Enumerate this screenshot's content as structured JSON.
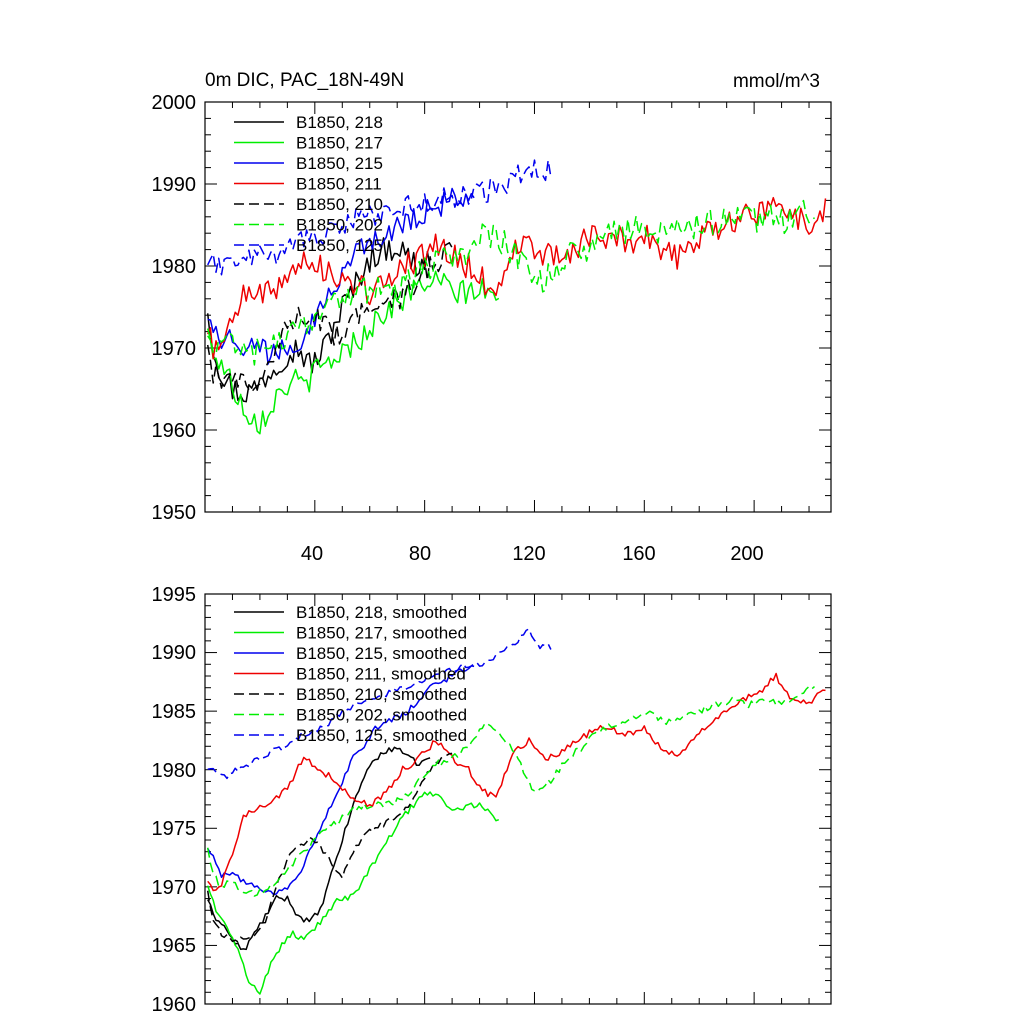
{
  "chart_data": [
    {
      "type": "line",
      "title": "0m DIC, PAC_18N-49N",
      "units": "mmol/m^3",
      "xlim": [
        0,
        228
      ],
      "ylim": [
        1950,
        2000
      ],
      "x_ticks": [
        40,
        80,
        120,
        160,
        200
      ],
      "x_tick_labels": [
        "40",
        "80",
        "120",
        "160",
        "200"
      ],
      "y_ticks": [
        1950,
        1960,
        1970,
        1980,
        1990,
        2000
      ],
      "y_tick_labels": [
        "1950",
        "1960",
        "1970",
        "1980",
        "1990",
        "2000"
      ],
      "legend_position": "top-left",
      "series": [
        {
          "name": "B1850, 218",
          "color": "#000000",
          "dash": "solid",
          "noise": 1.7,
          "x": [
            1,
            3,
            6,
            10,
            14,
            18,
            22,
            26,
            30,
            34,
            38,
            42,
            46,
            50,
            54,
            58,
            62,
            66,
            70,
            74,
            78,
            82
          ],
          "y": [
            1975,
            1970,
            1967,
            1965,
            1964.5,
            1965,
            1966.5,
            1968,
            1969.5,
            1970,
            1968,
            1969,
            1972,
            1975,
            1977,
            1980,
            1981.5,
            1982,
            1982.5,
            1981,
            1980,
            1981
          ]
        },
        {
          "name": "B1850, 217",
          "color": "#00ee00",
          "dash": "solid",
          "noise": 1.6,
          "x": [
            1,
            4,
            8,
            12,
            16,
            20,
            24,
            28,
            32,
            36,
            40,
            44,
            48,
            52,
            56,
            60,
            64,
            68,
            72,
            76,
            80,
            84,
            88,
            92,
            96,
            100,
            104,
            107
          ],
          "y": [
            1971,
            1969,
            1967,
            1964,
            1962,
            1961,
            1963,
            1965,
            1966,
            1965.5,
            1967,
            1968,
            1969,
            1970,
            1971,
            1972.5,
            1974,
            1975,
            1976,
            1977,
            1978,
            1978,
            1977.5,
            1976.5,
            1977,
            1977,
            1976.5,
            1975.5
          ]
        },
        {
          "name": "B1850, 215",
          "color": "#0000ee",
          "dash": "solid",
          "noise": 1.6,
          "x": [
            1,
            3,
            6,
            10,
            14,
            18,
            22,
            26,
            30,
            34,
            38,
            42,
            46,
            50,
            54,
            58,
            62,
            66,
            70,
            74,
            78,
            82,
            86,
            90,
            94,
            98
          ],
          "y": [
            1975,
            1973,
            1971,
            1971,
            1970.5,
            1970,
            1969.5,
            1969.5,
            1970,
            1971,
            1973,
            1975,
            1977,
            1979,
            1981,
            1982,
            1983.5,
            1984,
            1984.5,
            1985,
            1986,
            1987,
            1987.5,
            1988,
            1988.5,
            1989
          ]
        },
        {
          "name": "B1850, 211",
          "color": "#ee0000",
          "dash": "solid",
          "noise": 1.7,
          "x": [
            1,
            3,
            6,
            10,
            14,
            18,
            24,
            30,
            36,
            42,
            48,
            54,
            60,
            66,
            72,
            78,
            84,
            90,
            96,
            100,
            106,
            112,
            118,
            124,
            130,
            136,
            142,
            148,
            154,
            160,
            166,
            172,
            178,
            184,
            190,
            196,
            202,
            208,
            214,
            220,
            226
          ],
          "y": [
            1972,
            1970,
            1970,
            1973,
            1976,
            1976.5,
            1977,
            1978.5,
            1981,
            1980,
            1979,
            1977.5,
            1977,
            1978,
            1980,
            1981,
            1982.5,
            1981,
            1980,
            1978.5,
            1977.5,
            1981.5,
            1982.5,
            1981,
            1981.5,
            1982.5,
            1983.5,
            1983.5,
            1983,
            1983.5,
            1982,
            1981,
            1982.5,
            1984,
            1985,
            1986,
            1986.5,
            1988,
            1986,
            1985.5,
            1987
          ]
        },
        {
          "name": "B1850, 210",
          "color": "#000000",
          "dash": "dash",
          "noise": 1.5,
          "x": [
            1,
            3,
            6,
            10,
            14,
            18,
            22,
            26,
            30,
            34,
            38,
            42,
            46,
            50,
            54,
            58,
            62,
            66,
            70,
            74,
            78,
            82,
            86,
            90
          ],
          "y": [
            1969.5,
            1967,
            1966,
            1965.5,
            1965.5,
            1966,
            1967,
            1970,
            1972.5,
            1973.5,
            1974,
            1973.5,
            1972,
            1971,
            1973,
            1974.5,
            1975,
            1975.5,
            1976,
            1977,
            1978.5,
            1980,
            1981,
            1981.5
          ]
        },
        {
          "name": "B1850, 202",
          "color": "#00ee00",
          "dash": "dash",
          "noise": 1.7,
          "x": [
            1,
            3,
            6,
            10,
            14,
            18,
            24,
            30,
            36,
            42,
            48,
            54,
            60,
            66,
            72,
            78,
            84,
            90,
            96,
            102,
            108,
            114,
            120,
            126,
            132,
            138,
            144,
            150,
            156,
            162,
            168,
            174,
            180,
            186,
            192,
            198,
            204,
            210,
            216,
            222
          ],
          "y": [
            1973.5,
            1971,
            1970,
            1970.5,
            1969.5,
            1969.5,
            1970,
            1971.5,
            1973,
            1974.5,
            1975.5,
            1976.5,
            1977,
            1977,
            1977.5,
            1979,
            1980.5,
            1981,
            1982,
            1984,
            1983,
            1981,
            1978,
            1979,
            1981,
            1982,
            1983.5,
            1984,
            1984.5,
            1985,
            1984,
            1984.5,
            1985,
            1985.5,
            1986,
            1985.5,
            1986,
            1985.5,
            1986.5,
            1987
          ]
        },
        {
          "name": "B1850, 125",
          "color": "#0000ee",
          "dash": "dash",
          "noise": 1.5,
          "x": [
            1,
            4,
            8,
            12,
            16,
            20,
            24,
            30,
            36,
            42,
            48,
            54,
            60,
            66,
            72,
            78,
            84,
            90,
            96,
            102,
            108,
            114,
            118,
            122,
            126
          ],
          "y": [
            1980,
            1980,
            1979.5,
            1980,
            1980.5,
            1981,
            1981.5,
            1982,
            1983,
            1983.5,
            1984.5,
            1985.5,
            1986,
            1986.5,
            1987,
            1987.5,
            1988,
            1988.5,
            1989,
            1989,
            1990,
            1991,
            1992,
            1991,
            1992
          ]
        }
      ]
    },
    {
      "type": "line",
      "xlim": [
        0,
        228
      ],
      "ylim": [
        1960,
        1995
      ],
      "x_ticks": [
        40,
        80,
        120,
        160,
        200
      ],
      "y_ticks": [
        1960,
        1965,
        1970,
        1975,
        1980,
        1985,
        1990,
        1995
      ],
      "y_tick_labels": [
        "1960",
        "1965",
        "1970",
        "1975",
        "1980",
        "1985",
        "1990",
        "1995"
      ],
      "legend_position": "top-left",
      "series": [
        {
          "name": "B1850, 218, smoothed",
          "color": "#000000",
          "dash": "solid",
          "noise": 0.25,
          "x": [
            1,
            3,
            6,
            10,
            14,
            18,
            22,
            26,
            30,
            34,
            38,
            42,
            46,
            50,
            54,
            58,
            62,
            66,
            70,
            74,
            78,
            82
          ],
          "y": [
            1969,
            1967.5,
            1967,
            1965.5,
            1964.5,
            1966,
            1967.5,
            1969,
            1969,
            1967.5,
            1967,
            1968,
            1971,
            1974,
            1977,
            1979.5,
            1981,
            1981.5,
            1982,
            1981,
            1980.5,
            1981
          ]
        },
        {
          "name": "B1850, 217, smoothed",
          "color": "#00ee00",
          "dash": "solid",
          "noise": 0.25,
          "x": [
            1,
            4,
            8,
            12,
            16,
            20,
            24,
            28,
            32,
            36,
            40,
            44,
            48,
            52,
            56,
            60,
            64,
            68,
            72,
            76,
            80,
            84,
            88,
            92,
            96,
            100,
            104,
            107
          ],
          "y": [
            1970,
            1968,
            1966.5,
            1964.5,
            1962,
            1961,
            1963.5,
            1965,
            1966,
            1965.5,
            1966.5,
            1967.5,
            1969,
            1969,
            1970,
            1971.5,
            1973,
            1974.5,
            1976,
            1977,
            1978,
            1978,
            1977,
            1976.5,
            1977,
            1977,
            1976.5,
            1975.5
          ]
        },
        {
          "name": "B1850, 215, smoothed",
          "color": "#0000ee",
          "dash": "solid",
          "noise": 0.25,
          "x": [
            1,
            3,
            6,
            10,
            14,
            18,
            22,
            26,
            30,
            34,
            38,
            42,
            46,
            50,
            54,
            58,
            62,
            66,
            70,
            74,
            78,
            82,
            86,
            90,
            94,
            98
          ],
          "y": [
            1973.5,
            1972.5,
            1971,
            1971,
            1970.5,
            1970,
            1969.5,
            1969.5,
            1970,
            1971,
            1973,
            1975,
            1977,
            1979,
            1981,
            1982,
            1983.5,
            1984,
            1984.5,
            1985,
            1986,
            1987,
            1987.5,
            1988,
            1988.5,
            1989
          ]
        },
        {
          "name": "B1850, 211, smoothed",
          "color": "#ee0000",
          "dash": "solid",
          "noise": 0.3,
          "x": [
            1,
            3,
            6,
            10,
            14,
            18,
            24,
            30,
            36,
            42,
            48,
            54,
            60,
            66,
            72,
            78,
            84,
            90,
            96,
            100,
            106,
            112,
            118,
            124,
            130,
            136,
            142,
            148,
            154,
            160,
            166,
            172,
            178,
            184,
            190,
            196,
            202,
            208,
            214,
            220,
            226
          ],
          "y": [
            1970.5,
            1969.5,
            1970,
            1973,
            1976,
            1976.5,
            1977,
            1978.5,
            1981,
            1980,
            1979,
            1977.5,
            1977,
            1978,
            1980,
            1981,
            1982.5,
            1981,
            1980,
            1978.5,
            1977.5,
            1981.5,
            1982.5,
            1981,
            1981.5,
            1982.5,
            1983.5,
            1983.5,
            1983,
            1983.5,
            1982,
            1981,
            1982.5,
            1984,
            1985,
            1986,
            1986.5,
            1988,
            1986,
            1985.5,
            1987
          ]
        },
        {
          "name": "B1850, 210, smoothed",
          "color": "#000000",
          "dash": "dash",
          "noise": 0.25,
          "x": [
            1,
            3,
            6,
            10,
            14,
            18,
            22,
            26,
            30,
            34,
            38,
            42,
            46,
            50,
            54,
            58,
            62,
            66,
            70,
            74,
            78,
            82,
            86,
            90
          ],
          "y": [
            1969.5,
            1967,
            1966,
            1965.5,
            1965.5,
            1966,
            1967,
            1970,
            1972.5,
            1973.5,
            1974,
            1973.5,
            1972,
            1971,
            1973,
            1974.5,
            1975,
            1975.5,
            1976,
            1977,
            1978.5,
            1980,
            1981,
            1981.5
          ]
        },
        {
          "name": "B1850, 202, smoothed",
          "color": "#00ee00",
          "dash": "dash",
          "noise": 0.3,
          "x": [
            1,
            3,
            6,
            10,
            14,
            18,
            24,
            30,
            36,
            42,
            48,
            54,
            60,
            66,
            72,
            78,
            84,
            90,
            96,
            102,
            108,
            114,
            120,
            126,
            132,
            138,
            144,
            150,
            156,
            162,
            168,
            174,
            180,
            186,
            192,
            198,
            204,
            210,
            216,
            222
          ],
          "y": [
            1973.5,
            1971,
            1970,
            1970.5,
            1969.5,
            1969.5,
            1970,
            1971.5,
            1973,
            1974.5,
            1975.5,
            1976.5,
            1977,
            1977,
            1977.5,
            1979,
            1980.5,
            1981,
            1982,
            1984,
            1983,
            1981,
            1978,
            1979,
            1981,
            1982,
            1983.5,
            1984,
            1984.5,
            1985,
            1984,
            1984.5,
            1985,
            1985.5,
            1986,
            1985.5,
            1986,
            1985.5,
            1986.5,
            1987
          ]
        },
        {
          "name": "B1850, 125, smoothed",
          "color": "#0000ee",
          "dash": "dash",
          "noise": 0.25,
          "x": [
            1,
            4,
            8,
            12,
            16,
            20,
            24,
            30,
            36,
            42,
            48,
            54,
            60,
            66,
            72,
            78,
            84,
            90,
            96,
            102,
            108,
            114,
            118,
            122,
            126
          ],
          "y": [
            1980,
            1980,
            1979.5,
            1980,
            1980.5,
            1981,
            1981.5,
            1982,
            1983,
            1983.5,
            1984.5,
            1985.5,
            1986,
            1986.5,
            1987,
            1987.5,
            1988,
            1988.5,
            1989,
            1989,
            1990,
            1991,
            1992,
            1990.5,
            1990.5
          ]
        }
      ]
    }
  ]
}
